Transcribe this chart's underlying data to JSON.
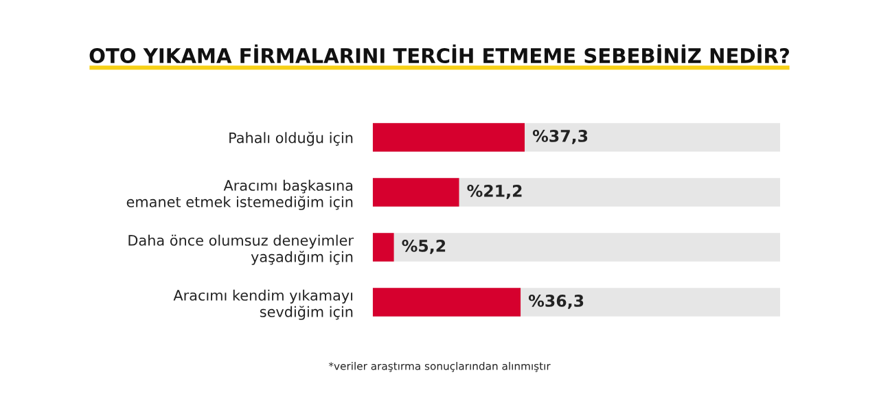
{
  "chart_data": {
    "type": "bar",
    "orientation": "horizontal",
    "title": "OTO YIKAMA FİRMALARINI TERCİH ETMEME SEBEBİNİZ NEDİR?",
    "categories": [
      "Pahalı olduğu için",
      "Aracımı başkasına\nemanet etmek istemediğim için",
      "Daha önce olumsuz deneyimler\nyaşadığım için",
      "Aracımı kendim yıkamayı\nsevdiğim için"
    ],
    "values": [
      37.3,
      21.2,
      5.2,
      36.3
    ],
    "value_labels": [
      "%37,3",
      "%21,2",
      "%5,2",
      "%36,3"
    ],
    "color": "#d6002e",
    "xlim": [
      0,
      100
    ],
    "tick_labels": "y",
    "grid": false,
    "legend": false,
    "annotations": [
      "*veriler araştırma sonuçlarından alınmıştır"
    ]
  }
}
